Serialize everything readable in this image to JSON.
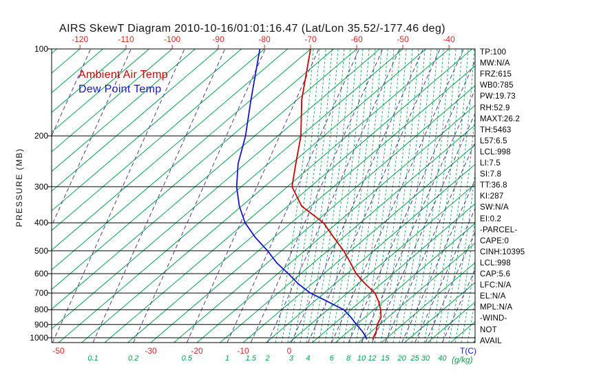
{
  "title": "AIRS SkewT Diagram 2010-10-16/01:01:16.47 (Lat/Lon 35.52/-177.46 deg)",
  "legend": {
    "ambient": "Ambient Air Temp",
    "dew": "Dew Point Temp"
  },
  "labels": {
    "pressure_axis": "PRESSURE (MB)",
    "temp_unit": "T(C)",
    "mixing_unit": "(g/kg)"
  },
  "stats": [
    "TP:100",
    "MW:N/A",
    "FRZ:615",
    "WB0:785",
    "PW:19.73",
    "RH:52.9",
    "MAXT:26.2",
    "TH:5463",
    "L57:6.5",
    "LCL:998",
    "LI:7.5",
    "SI:7.8",
    "TT:36.8",
    "KI:287",
    "SW:N/A",
    "EI:0.2",
    "-PARCEL-",
    "CAPE:0",
    "CINH:10395",
    "LCL:998",
    "CAP:5.6",
    "LFC:N/A",
    "EL:N/A",
    "MPL:N/A",
    "-WIND-",
    "NOT",
    "AVAIL"
  ],
  "colors": {
    "red": "#dd2222",
    "curve_red": "#cc0000",
    "blue": "#1515cc",
    "green": "#00a44c",
    "purple": "#4d3596",
    "black": "#000000"
  },
  "chart_data": {
    "type": "line",
    "title": "AIRS Skew-T / log-P sounding",
    "y_axis": {
      "label": "PRESSURE (MB)",
      "scale": "log",
      "range_mb": [
        100,
        1050
      ],
      "ticks_mb": [
        100,
        200,
        300,
        400,
        500,
        600,
        700,
        800,
        900,
        1000
      ]
    },
    "x_axis": {
      "label": "T(C)",
      "skew": "isotherms slope up-right",
      "top_ticks_c": [
        -120,
        -110,
        -100,
        -90,
        -80,
        -70,
        -60,
        -50,
        -40
      ],
      "bottom_ticks_c": [
        -50,
        -30,
        -20,
        -10,
        0
      ]
    },
    "mixing_ratio_gkg": [
      0.1,
      0.2,
      0.5,
      1,
      1.5,
      2,
      3,
      4,
      6,
      8,
      10,
      12,
      15,
      20,
      25,
      30,
      40
    ],
    "series": [
      {
        "name": "Ambient Air Temp",
        "color_key": "curve_red",
        "pressure_mb": [
          100,
          150,
          200,
          250,
          300,
          350,
          400,
          450,
          500,
          550,
          600,
          650,
          700,
          750,
          800,
          850,
          900,
          950,
          1000,
          1013
        ],
        "temp_c": [
          -70,
          -59,
          -50,
          -44,
          -39,
          -32,
          -23,
          -17,
          -11.5,
          -7,
          -3,
          1.5,
          6,
          9,
          11.5,
          13.5,
          14.5,
          16,
          17,
          17.3
        ]
      },
      {
        "name": "Dew Point Temp",
        "color_key": "blue",
        "pressure_mb": [
          100,
          150,
          200,
          250,
          300,
          350,
          400,
          450,
          500,
          550,
          600,
          650,
          700,
          750,
          800,
          850,
          900,
          950,
          1000,
          1013
        ],
        "temp_c": [
          -81,
          -70,
          -62,
          -56.5,
          -51,
          -45.5,
          -40,
          -34,
          -28,
          -23,
          -17.7,
          -13,
          -8,
          -2,
          3.5,
          7,
          10,
          13,
          15.5,
          16
        ]
      }
    ]
  }
}
